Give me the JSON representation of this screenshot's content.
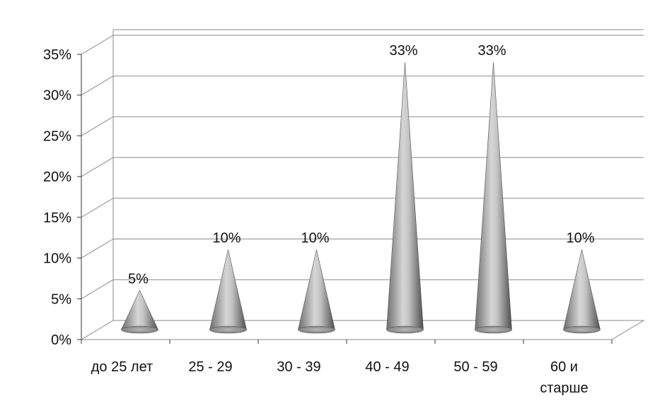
{
  "chart_data": {
    "type": "bar",
    "bar_shape": "cone",
    "categories": [
      "до 25 лет",
      "25 - 29",
      "30 - 39",
      "40 - 49",
      "50 - 59",
      "60 и старше"
    ],
    "values": [
      5,
      10,
      10,
      33,
      33,
      10
    ],
    "data_labels": [
      "5%",
      "10%",
      "10%",
      "33%",
      "33%",
      "10%"
    ],
    "y_ticks": [
      "0%",
      "5%",
      "10%",
      "15%",
      "20%",
      "25%",
      "30%",
      "35%"
    ],
    "ylim": [
      0,
      35
    ],
    "title": "",
    "xlabel": "",
    "ylabel": "",
    "grid": true,
    "legend": "none",
    "colors": {
      "cone_dark": "#5a5a5a",
      "cone_light": "#d8d8d8",
      "grid": "#8a8a8a"
    }
  }
}
